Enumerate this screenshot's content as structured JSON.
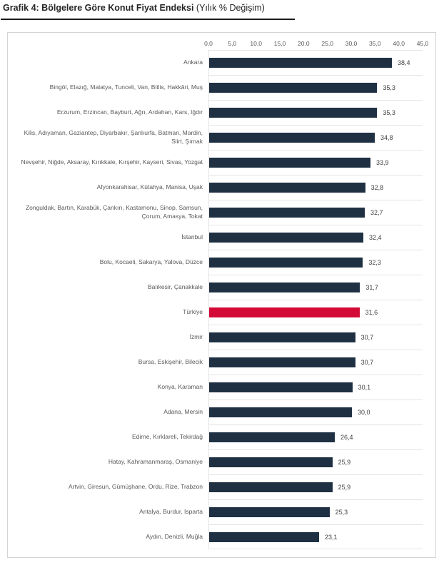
{
  "header": {
    "title_bold": "Grafik 4: Bölgelere Göre Konut Fiyat Endeksi",
    "title_normal": " (Yılık % Değişim)"
  },
  "chart_data": {
    "type": "bar",
    "orientation": "horizontal",
    "title": "Grafik 4: Bölgelere Göre Konut Fiyat Endeksi",
    "subtitle": "Yılık % Değişim",
    "x_axis": {
      "position": "top",
      "min": 0,
      "max": 45,
      "tick_step": 5,
      "tick_labels": [
        "0,0",
        "5,0",
        "10,0",
        "15,0",
        "20,0",
        "25,0",
        "30,0",
        "35,0",
        "40,0",
        "45,0"
      ]
    },
    "grid": "row-separators",
    "legend": false,
    "colors": {
      "bar": "#1f3043",
      "highlight": "#d20a35",
      "axis_text": "#595959",
      "category_text": "#595959",
      "value_text": "#3f3f3f",
      "separator": "#e4e4e4",
      "panel_border": "#d4d4d4"
    },
    "highlight_category": "Türkiye",
    "rows": [
      {
        "label": "Ankara",
        "value": 38.4,
        "value_label": "38,4",
        "highlight": false
      },
      {
        "label": "Bingöl, Elazığ, Malatya, Tunceli, Van, Bitlis, Hakkâri, Muş",
        "value": 35.3,
        "value_label": "35,3",
        "highlight": false
      },
      {
        "label": "Erzurum, Erzincan, Bayburt, Ağrı, Ardahan, Kars, Iğdır",
        "value": 35.3,
        "value_label": "35,3",
        "highlight": false
      },
      {
        "label": "Kilis, Adıyaman, Gaziantep, Diyarbakır, Şanlıurfa, Batman, Mardin, Siirt, Şırnak",
        "value": 34.8,
        "value_label": "34,8",
        "highlight": false
      },
      {
        "label": "Nevşehir, Niğde, Aksaray, Kırıkkale, Kırşehir, Kayseri, Sivas, Yozgat",
        "value": 33.9,
        "value_label": "33,9",
        "highlight": false
      },
      {
        "label": "Afyonkarahisar, Kütahya, Manisa, Uşak",
        "value": 32.8,
        "value_label": "32,8",
        "highlight": false
      },
      {
        "label": "Zonguldak, Bartın, Karabük, Çankırı, Kastamonu, Sinop, Samsun, Çorum, Amasya, Tokat",
        "value": 32.7,
        "value_label": "32,7",
        "highlight": false
      },
      {
        "label": "İstanbul",
        "value": 32.4,
        "value_label": "32,4",
        "highlight": false
      },
      {
        "label": "Bolu, Kocaeli, Sakarya, Yalova, Düzce",
        "value": 32.3,
        "value_label": "32,3",
        "highlight": false
      },
      {
        "label": "Balıkesir, Çanakkale",
        "value": 31.7,
        "value_label": "31,7",
        "highlight": false
      },
      {
        "label": "Türkiye",
        "value": 31.6,
        "value_label": "31,6",
        "highlight": true
      },
      {
        "label": "İzmir",
        "value": 30.7,
        "value_label": "30,7",
        "highlight": false
      },
      {
        "label": "Bursa, Eskişehir, Bilecik",
        "value": 30.7,
        "value_label": "30,7",
        "highlight": false
      },
      {
        "label": "Konya, Karaman",
        "value": 30.1,
        "value_label": "30,1",
        "highlight": false
      },
      {
        "label": "Adana, Mersin",
        "value": 30.0,
        "value_label": "30,0",
        "highlight": false
      },
      {
        "label": "Edirne, Kırklareli, Tekirdağ",
        "value": 26.4,
        "value_label": "26,4",
        "highlight": false
      },
      {
        "label": "Hatay, Kahramanmaraş, Osmaniye",
        "value": 25.9,
        "value_label": "25,9",
        "highlight": false
      },
      {
        "label": "Artvin, Giresun, Gümüşhane, Ordu, Rize, Trabzon",
        "value": 25.9,
        "value_label": "25,9",
        "highlight": false
      },
      {
        "label": "Antalya, Burdur, Isparta",
        "value": 25.3,
        "value_label": "25,3",
        "highlight": false
      },
      {
        "label": "Aydın, Denizli, Muğla",
        "value": 23.1,
        "value_label": "23,1",
        "highlight": false
      }
    ]
  }
}
